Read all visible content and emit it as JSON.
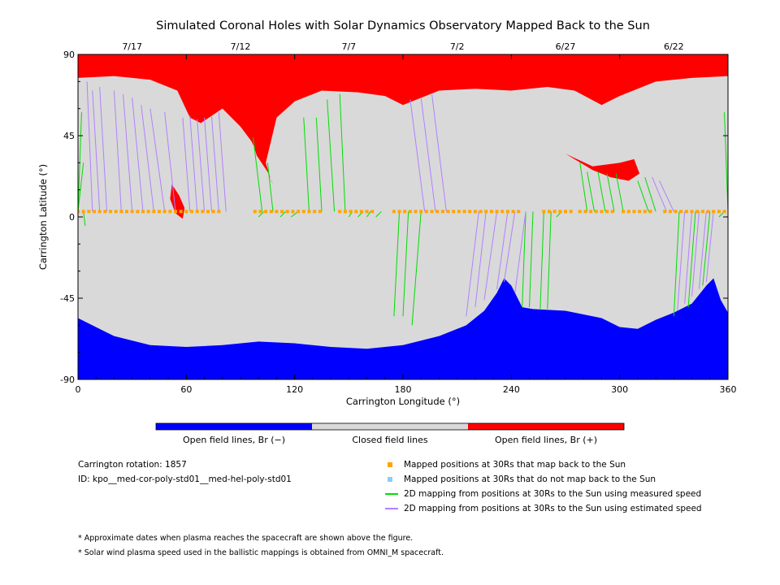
{
  "chart_data": {
    "type": "map",
    "title": "Simulated Coronal Holes with Solar Dynamics Observatory Mapped Back to the Sun",
    "xlabel": "Carrington Longitude (°)",
    "ylabel": "Carrington Latitude (°)",
    "xlim": [
      0,
      360
    ],
    "ylim": [
      -90,
      90
    ],
    "x_ticks": [
      "0",
      "60",
      "120",
      "180",
      "240",
      "300",
      "360"
    ],
    "y_ticks": [
      "90",
      "45",
      "0",
      "-45",
      "-90"
    ],
    "date_ticks": [
      {
        "label": "7/17",
        "lon": 30
      },
      {
        "label": "7/12",
        "lon": 90
      },
      {
        "label": "7/7",
        "lon": 150
      },
      {
        "label": "7/2",
        "lon": 210
      },
      {
        "label": "6/27",
        "lon": 270
      },
      {
        "label": "6/22",
        "lon": 330
      }
    ],
    "colors": {
      "open_negative": "#0000ff",
      "closed": "#d9d9d9",
      "open_positive": "#ff0000",
      "mapped": "#ffa500",
      "not_mapped": "#87cefa",
      "measured_speed": "#00dd00",
      "estimated_speed": "#b380ff"
    },
    "north_boundary": [
      [
        0,
        77
      ],
      [
        20,
        78
      ],
      [
        40,
        76
      ],
      [
        55,
        70
      ],
      [
        62,
        55
      ],
      [
        68,
        52
      ],
      [
        80,
        60
      ],
      [
        90,
        50
      ],
      [
        96,
        42
      ],
      [
        100,
        34
      ],
      [
        104,
        30
      ],
      [
        110,
        55
      ],
      [
        120,
        64
      ],
      [
        135,
        70
      ],
      [
        155,
        69
      ],
      [
        170,
        67
      ],
      [
        180,
        62
      ],
      [
        190,
        66
      ],
      [
        200,
        70
      ],
      [
        220,
        71
      ],
      [
        240,
        70
      ],
      [
        260,
        72
      ],
      [
        275,
        70
      ],
      [
        290,
        62
      ],
      [
        300,
        67
      ],
      [
        320,
        75
      ],
      [
        340,
        77
      ],
      [
        360,
        78
      ]
    ],
    "south_boundary": [
      [
        0,
        -56
      ],
      [
        20,
        -66
      ],
      [
        40,
        -71
      ],
      [
        60,
        -72
      ],
      [
        80,
        -71
      ],
      [
        100,
        -69
      ],
      [
        120,
        -70
      ],
      [
        140,
        -72
      ],
      [
        160,
        -73
      ],
      [
        180,
        -71
      ],
      [
        200,
        -66
      ],
      [
        215,
        -60
      ],
      [
        225,
        -52
      ],
      [
        232,
        -42
      ],
      [
        236,
        -34
      ],
      [
        240,
        -38
      ],
      [
        246,
        -50
      ],
      [
        252,
        -51
      ],
      [
        270,
        -52
      ],
      [
        290,
        -56
      ],
      [
        300,
        -61
      ],
      [
        310,
        -62
      ],
      [
        320,
        -57
      ],
      [
        330,
        -53
      ],
      [
        340,
        -48
      ],
      [
        348,
        -38
      ],
      [
        352,
        -34
      ],
      [
        356,
        -46
      ],
      [
        360,
        -53
      ]
    ],
    "hole_equatorial": [
      [
        52,
        18
      ],
      [
        56,
        12
      ],
      [
        59,
        5
      ],
      [
        58,
        -1
      ],
      [
        54,
        2
      ],
      [
        51,
        10
      ]
    ],
    "hole_tongue": [
      [
        96,
        44
      ],
      [
        104,
        30
      ],
      [
        107,
        20
      ],
      [
        108,
        18
      ],
      [
        105,
        25
      ],
      [
        99,
        34
      ]
    ],
    "hole_midlat": [
      [
        270,
        35
      ],
      [
        285,
        28
      ],
      [
        300,
        30
      ],
      [
        308,
        32
      ],
      [
        311,
        24
      ],
      [
        305,
        20
      ],
      [
        295,
        22
      ],
      [
        285,
        26
      ]
    ],
    "mapped_points": {
      "lat": 3,
      "segments": [
        [
          0,
          80
        ],
        [
          98,
          135
        ],
        [
          145,
          165
        ],
        [
          175,
          245
        ],
        [
          258,
          275
        ],
        [
          278,
          298
        ],
        [
          302,
          317
        ],
        [
          325,
          360
        ]
      ]
    },
    "measured_lines": [
      [
        2,
        58,
        0
      ],
      [
        3,
        30,
        0
      ],
      [
        4,
        -5,
        3
      ],
      [
        97,
        44,
        102
      ],
      [
        100,
        0,
        103
      ],
      [
        105,
        30,
        108
      ],
      [
        112,
        0,
        115
      ],
      [
        118,
        0,
        122
      ],
      [
        125,
        55,
        128
      ],
      [
        132,
        55,
        135
      ],
      [
        138,
        65,
        142
      ],
      [
        145,
        68,
        148
      ],
      [
        150,
        0,
        152
      ],
      [
        155,
        0,
        158
      ],
      [
        160,
        0,
        162
      ],
      [
        165,
        0,
        168
      ],
      [
        175,
        -55,
        178
      ],
      [
        180,
        -55,
        183
      ],
      [
        185,
        -60,
        190
      ],
      [
        246,
        -50,
        248
      ],
      [
        250,
        -50,
        252
      ],
      [
        256,
        -51,
        258
      ],
      [
        260,
        -51,
        262
      ],
      [
        265,
        0,
        268
      ],
      [
        278,
        30,
        282
      ],
      [
        282,
        25,
        286
      ],
      [
        288,
        25,
        292
      ],
      [
        293,
        24,
        297
      ],
      [
        298,
        24,
        302
      ],
      [
        310,
        20,
        316
      ],
      [
        314,
        22,
        320
      ],
      [
        330,
        -55,
        333
      ],
      [
        338,
        -50,
        342
      ],
      [
        346,
        -38,
        350
      ],
      [
        355,
        0,
        358
      ],
      [
        358,
        58,
        360
      ]
    ],
    "estimated_lines": [
      [
        5,
        75,
        8
      ],
      [
        8,
        70,
        12
      ],
      [
        12,
        72,
        16
      ],
      [
        20,
        70,
        24
      ],
      [
        25,
        68,
        30
      ],
      [
        30,
        66,
        36
      ],
      [
        35,
        62,
        42
      ],
      [
        40,
        60,
        48
      ],
      [
        48,
        58,
        54
      ],
      [
        58,
        55,
        62
      ],
      [
        62,
        56,
        66
      ],
      [
        66,
        54,
        70
      ],
      [
        70,
        55,
        74
      ],
      [
        74,
        56,
        78
      ],
      [
        78,
        58,
        82
      ],
      [
        184,
        65,
        192
      ],
      [
        190,
        66,
        198
      ],
      [
        196,
        68,
        204
      ],
      [
        215,
        -55,
        222
      ],
      [
        220,
        -50,
        226
      ],
      [
        225,
        -46,
        232
      ],
      [
        232,
        -40,
        238
      ],
      [
        236,
        -36,
        242
      ],
      [
        242,
        -42,
        248
      ],
      [
        318,
        22,
        326
      ],
      [
        322,
        20,
        330
      ],
      [
        332,
        -52,
        336
      ],
      [
        336,
        -48,
        340
      ],
      [
        340,
        -44,
        344
      ],
      [
        344,
        -40,
        348
      ],
      [
        348,
        -36,
        352
      ]
    ]
  },
  "scale_bar": {
    "labels": [
      "Open field lines, Br (−)",
      "Closed field lines",
      "Open field lines, Br (+)"
    ]
  },
  "info": {
    "rotation": "Carrington rotation: 1857",
    "id": "ID: kpo__med-cor-poly-std01__med-hel-poly-std01"
  },
  "legend": {
    "mapped": "Mapped positions at 30Rs that map back to the Sun",
    "not_mapped": "Mapped positions at 30Rs that do not map back to the Sun",
    "measured": "2D mapping from positions at 30Rs to the Sun using measured speed",
    "estimated": "2D mapping from positions at 30Rs to the Sun using estimated speed"
  },
  "notes": [
    "* Approximate dates when plasma reaches the spacecraft are shown above the figure.",
    "* Solar wind plasma speed used in the ballistic mappings is obtained from OMNI_M spacecraft."
  ]
}
